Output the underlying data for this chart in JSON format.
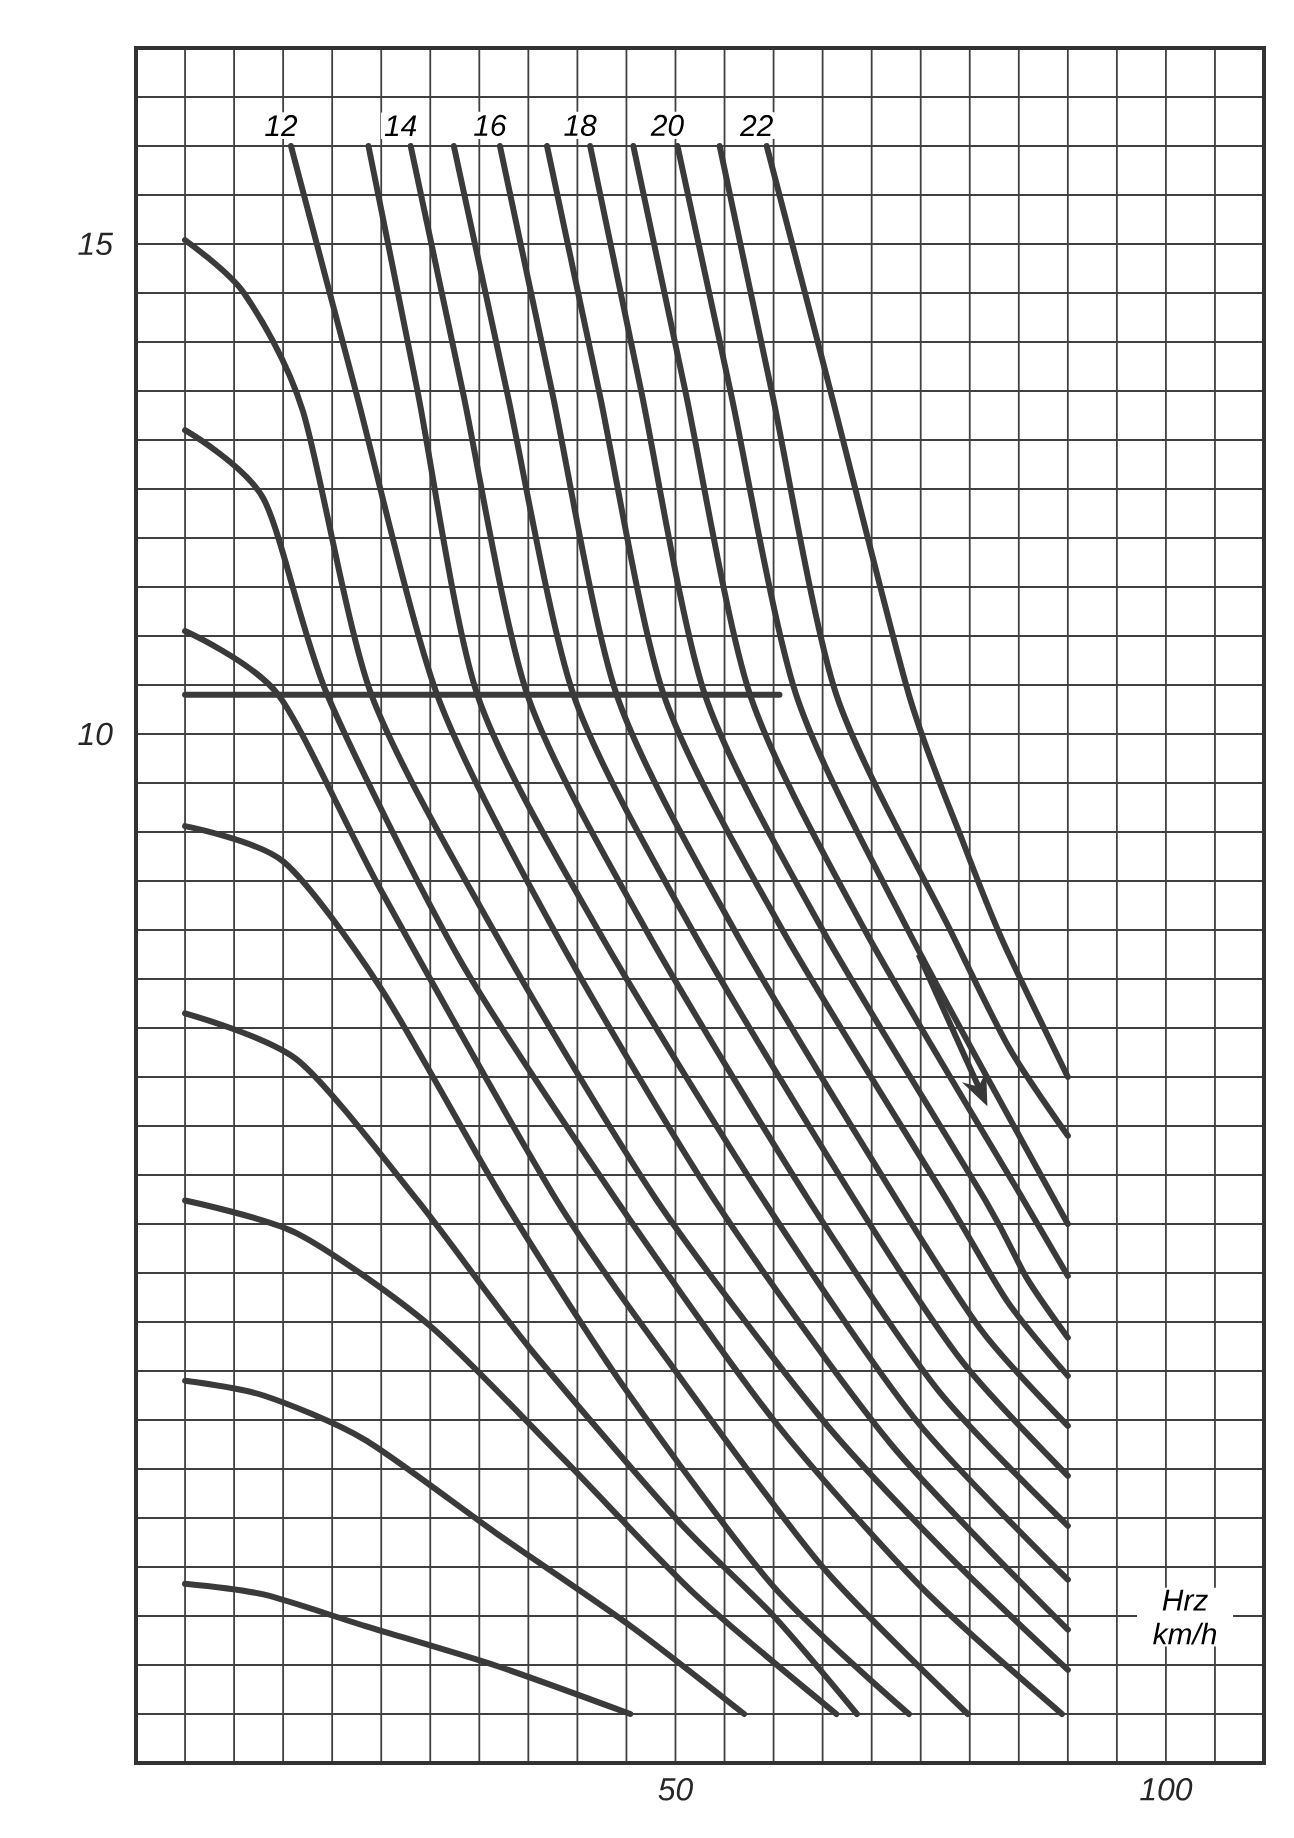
{
  "chart_data": {
    "type": "line",
    "xlabel": "Hrz km/h",
    "xlim": [
      -5,
      110
    ],
    "ylim": [
      -0.5,
      17
    ],
    "xticks": [
      {
        "value": -5,
        "label": null
      },
      {
        "value": 0,
        "label": null
      },
      {
        "value": 5,
        "label": null
      },
      {
        "value": 10,
        "label": null
      },
      {
        "value": 15,
        "label": null
      },
      {
        "value": 20,
        "label": null
      },
      {
        "value": 25,
        "label": null
      },
      {
        "value": 30,
        "label": null
      },
      {
        "value": 35,
        "label": null
      },
      {
        "value": 40,
        "label": null
      },
      {
        "value": 45,
        "label": null
      },
      50,
      {
        "value": 55,
        "label": null
      },
      {
        "value": 60,
        "label": null
      },
      {
        "value": 65,
        "label": null
      },
      {
        "value": 70,
        "label": null
      },
      {
        "value": 75,
        "label": null
      },
      {
        "value": 80,
        "label": null
      },
      {
        "value": 85,
        "label": null
      },
      {
        "value": 90,
        "label": null
      },
      {
        "value": 95,
        "label": null
      },
      100,
      {
        "value": 105,
        "label": null
      },
      {
        "value": 110,
        "label": null
      }
    ],
    "yticks": [
      {
        "value": -0.5,
        "label": null
      },
      {
        "value": 0,
        "label": null
      },
      {
        "value": 0.5,
        "label": null
      },
      {
        "value": 1,
        "label": null
      },
      {
        "value": 1.5,
        "label": null
      },
      {
        "value": 2,
        "label": null
      },
      {
        "value": 2.5,
        "label": null
      },
      {
        "value": 3,
        "label": null
      },
      {
        "value": 3.5,
        "label": null
      },
      {
        "value": 4,
        "label": null
      },
      {
        "value": 4.5,
        "label": null
      },
      {
        "value": 5,
        "label": null
      },
      {
        "value": 5.5,
        "label": null
      },
      {
        "value": 6,
        "label": null
      },
      {
        "value": 6.5,
        "label": null
      },
      {
        "value": 7,
        "label": null
      },
      {
        "value": 7.5,
        "label": null
      },
      {
        "value": 8,
        "label": null
      },
      {
        "value": 8.5,
        "label": null
      },
      {
        "value": 9,
        "label": null
      },
      {
        "value": 9.5,
        "label": null
      },
      10,
      {
        "value": 10.5,
        "label": null
      },
      {
        "value": 11,
        "label": null
      },
      {
        "value": 11.5,
        "label": null
      },
      {
        "value": 12,
        "label": null
      },
      {
        "value": 12.5,
        "label": null
      },
      {
        "value": 13,
        "label": null
      },
      {
        "value": 13.5,
        "label": null
      },
      {
        "value": 14,
        "label": null
      },
      {
        "value": 14.5,
        "label": null
      },
      15,
      {
        "value": 15.5,
        "label": null
      },
      {
        "value": 16,
        "label": null
      },
      {
        "value": 16.5,
        "label": null
      },
      {
        "value": 17,
        "label": null
      }
    ],
    "grid": true,
    "series": [
      {
        "color": "#3a3a3a",
        "x": [
          0,
          8,
          18.3,
          31.8,
          45.4
        ],
        "values": [
          1.33,
          1.22,
          0.9,
          0.49,
          0
        ]
      },
      {
        "color": "#3a3a3a",
        "x": [
          0,
          8,
          18.3,
          31.8,
          45.4,
          57
        ],
        "values": [
          3.4,
          3.25,
          2.8,
          1.84,
          0.9,
          0
        ]
      },
      {
        "color": "#3a3a3a",
        "x": [
          0,
          11.5,
          25,
          38.6,
          52,
          66.4
        ],
        "values": [
          5.24,
          4.9,
          3.96,
          2.6,
          1.22,
          0
        ]
      },
      {
        "color": "#3a3a3a",
        "x": [
          0,
          11.5,
          23.7,
          35,
          50,
          60,
          68.5
        ],
        "values": [
          7.15,
          6.67,
          5.24,
          3.75,
          2.0,
          1.0,
          0
        ]
      },
      {
        "color": "#3a3a3a",
        "x": [
          0,
          10,
          20,
          32.5,
          45,
          60,
          73.8
        ],
        "values": [
          9.06,
          8.7,
          7.4,
          5.24,
          3.3,
          1.3,
          0
        ]
      },
      {
        "color": "#3a3a3a",
        "x": [
          0,
          9.5,
          20,
          37.9,
          50,
          65,
          79.8
        ],
        "values": [
          11.05,
          10.4,
          8.4,
          5.24,
          3.5,
          1.5,
          0
        ]
      },
      {
        "color": "#3a3a3a",
        "x": [
          0,
          8,
          14.5,
          28,
          44,
          60,
          75,
          89.4
        ],
        "values": [
          13.1,
          12.4,
          10.4,
          7.7,
          5.24,
          3.0,
          1.3,
          0
        ]
      },
      {
        "color": "#3a3a3a",
        "x": [
          0,
          6,
          12,
          19,
          32,
          48.1,
          65,
          78,
          90
        ],
        "values": [
          15.04,
          14.5,
          13.3,
          10.4,
          7.9,
          5.24,
          3.0,
          1.6,
          0.45
        ]
      },
      {
        "name": "12",
        "color": "#3a3a3a",
        "x": [
          10.8,
          17.4,
          25.7,
          37.6,
          54,
          72,
          90
        ],
        "values": [
          16,
          13.5,
          10.4,
          8,
          5.24,
          2.75,
          0.86
        ]
      },
      {
        "color": "#3a3a3a",
        "x": [
          18.7,
          23.7,
          29.8,
          42.1,
          59,
          74.5,
          90
        ],
        "values": [
          16,
          13.5,
          10.4,
          8,
          5.24,
          3.0,
          1.37
        ]
      },
      {
        "name": "14",
        "color": "#3a3a3a",
        "x": [
          23,
          28.3,
          34.9,
          47,
          63.6,
          76.8,
          90
        ],
        "values": [
          16,
          13.5,
          10.4,
          8,
          5.24,
          3.3,
          1.92
        ]
      },
      {
        "color": "#3a3a3a",
        "x": [
          27.4,
          32.8,
          39.6,
          51.7,
          68.3,
          79.2,
          90
        ],
        "values": [
          16,
          13.5,
          10.4,
          8,
          5.24,
          3.6,
          2.43
        ]
      },
      {
        "name": "16",
        "color": "#3a3a3a",
        "x": [
          32.1,
          37.4,
          44,
          56,
          72.6,
          81.3,
          90
        ],
        "values": [
          16,
          13.5,
          10.4,
          8,
          5.24,
          3.9,
          2.94
        ]
      },
      {
        "color": "#3a3a3a",
        "x": [
          36.9,
          42.2,
          48.8,
          60.9,
          77.7,
          83.9,
          90
        ],
        "values": [
          16,
          13.5,
          10.4,
          8,
          5.24,
          4.2,
          3.45
        ]
      },
      {
        "name": "18",
        "color": "#3a3a3a",
        "x": [
          41.3,
          46.5,
          53,
          65,
          81.6,
          85.8,
          90
        ],
        "values": [
          16,
          13.5,
          10.4,
          8,
          5.24,
          4.45,
          3.84
        ]
      },
      {
        "color": "#3a3a3a",
        "x": [
          45.7,
          51,
          57.6,
          69.3,
          85.5,
          90
        ],
        "values": [
          16,
          13.5,
          10.4,
          8,
          5.24,
          4.47
        ]
      },
      {
        "name": "20",
        "color": "#3a3a3a",
        "x": [
          50.2,
          55.6,
          62.3,
          73.7,
          90
        ],
        "values": [
          16,
          13.5,
          10.4,
          8,
          5.0
        ]
      },
      {
        "color": "#3a3a3a",
        "x": [
          54.5,
          59.8,
          66.4,
          78,
          84,
          90
        ],
        "values": [
          16,
          13.5,
          10.4,
          8,
          6.8,
          5.9
        ]
      },
      {
        "name": "22",
        "color": "#3a3a3a",
        "x": [
          59.3,
          65.8,
          73.8,
          79.3,
          83.3,
          90
        ],
        "values": [
          16,
          13.5,
          10.4,
          8.9,
          7.9,
          6.5
        ]
      },
      {
        "color": "#3a3a3a",
        "x": [
          0,
          60.6
        ],
        "values": [
          10.4,
          10.4
        ]
      }
    ]
  }
}
